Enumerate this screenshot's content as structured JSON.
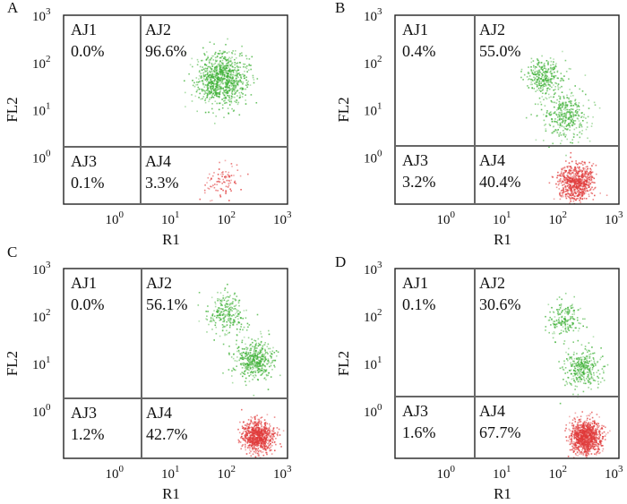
{
  "figure": {
    "description_free": true
  },
  "chart_data": [
    {
      "type": "scatter",
      "panel": "A",
      "xlabel": "R1",
      "ylabel": "FL2",
      "x_ticks": [
        "10",
        "10",
        "10",
        "10"
      ],
      "x_tick_exp": [
        "0",
        "1",
        "2",
        "3"
      ],
      "y_ticks": [
        "10",
        "10",
        "10",
        "10"
      ],
      "y_tick_exp": [
        "0",
        "1",
        "2",
        "3"
      ],
      "x_scale": "log",
      "y_scale": "log",
      "xlim": [
        0.1,
        1000
      ],
      "ylim": [
        0.1,
        1000
      ],
      "quadrants": [
        {
          "name": "AJ1",
          "percent": "0.0%"
        },
        {
          "name": "AJ2",
          "percent": "96.6%"
        },
        {
          "name": "AJ3",
          "percent": "0.1%"
        },
        {
          "name": "AJ4",
          "percent": "3.3%"
        }
      ],
      "clusters": [
        {
          "color": "#3cb034",
          "x": 65,
          "y": 45,
          "spread": 0.22,
          "density": 900
        },
        {
          "color": "#e03a3a",
          "x": 70,
          "y": 0.3,
          "spread": 0.18,
          "density": 90
        }
      ]
    },
    {
      "type": "scatter",
      "panel": "B",
      "xlabel": "R1",
      "ylabel": "FL2",
      "x_ticks": [
        "10",
        "10",
        "10",
        "10"
      ],
      "x_tick_exp": [
        "0",
        "1",
        "2",
        "3"
      ],
      "y_ticks": [
        "10",
        "10",
        "10",
        "10"
      ],
      "y_tick_exp": [
        "0",
        "1",
        "2",
        "3"
      ],
      "x_scale": "log",
      "y_scale": "log",
      "xlim": [
        0.1,
        1000
      ],
      "ylim": [
        0.1,
        1000
      ],
      "quadrants": [
        {
          "name": "AJ1",
          "percent": "0.4%"
        },
        {
          "name": "AJ2",
          "percent": "55.0%"
        },
        {
          "name": "AJ3",
          "percent": "3.2%"
        },
        {
          "name": "AJ4",
          "percent": "40.4%"
        }
      ],
      "clusters": [
        {
          "color": "#3cb034",
          "x": 45,
          "y": 50,
          "spread": 0.16,
          "density": 300
        },
        {
          "color": "#3cb034",
          "x": 110,
          "y": 8,
          "spread": 0.2,
          "density": 350
        },
        {
          "color": "#e03a3a",
          "x": 170,
          "y": 0.3,
          "spread": 0.16,
          "density": 700
        }
      ]
    },
    {
      "type": "scatter",
      "panel": "C",
      "xlabel": "R1",
      "ylabel": "FL2",
      "x_ticks": [
        "10",
        "10",
        "10",
        "10"
      ],
      "x_tick_exp": [
        "0",
        "1",
        "2",
        "3"
      ],
      "y_ticks": [
        "10",
        "10",
        "10",
        "10"
      ],
      "y_tick_exp": [
        "0",
        "1",
        "2",
        "3"
      ],
      "x_scale": "log",
      "y_scale": "log",
      "xlim": [
        0.1,
        1000
      ],
      "ylim": [
        0.1,
        1000
      ],
      "quadrants": [
        {
          "name": "AJ1",
          "percent": "0.0%"
        },
        {
          "name": "AJ2",
          "percent": "56.1%"
        },
        {
          "name": "AJ3",
          "percent": "1.2%"
        },
        {
          "name": "AJ4",
          "percent": "42.7%"
        }
      ],
      "clusters": [
        {
          "color": "#3cb034",
          "x": 80,
          "y": 110,
          "spread": 0.18,
          "density": 250
        },
        {
          "color": "#3cb034",
          "x": 250,
          "y": 12,
          "spread": 0.17,
          "density": 450
        },
        {
          "color": "#e03a3a",
          "x": 290,
          "y": 0.3,
          "spread": 0.14,
          "density": 800
        }
      ]
    },
    {
      "type": "scatter",
      "panel": "D",
      "xlabel": "R1",
      "ylabel": "FL2",
      "x_ticks": [
        "10",
        "10",
        "10",
        "10"
      ],
      "x_tick_exp": [
        "0",
        "1",
        "2",
        "3"
      ],
      "y_ticks": [
        "10",
        "10",
        "10",
        "10"
      ],
      "y_tick_exp": [
        "0",
        "1",
        "2",
        "3"
      ],
      "x_scale": "log",
      "y_scale": "log",
      "xlim": [
        0.1,
        1000
      ],
      "ylim": [
        0.1,
        1000
      ],
      "quadrants": [
        {
          "name": "AJ1",
          "percent": "0.1%"
        },
        {
          "name": "AJ2",
          "percent": "30.6%"
        },
        {
          "name": "AJ3",
          "percent": "1.6%"
        },
        {
          "name": "AJ4",
          "percent": "67.7%"
        }
      ],
      "clusters": [
        {
          "color": "#3cb034",
          "x": 100,
          "y": 90,
          "spread": 0.15,
          "density": 180
        },
        {
          "color": "#3cb034",
          "x": 210,
          "y": 8,
          "spread": 0.16,
          "density": 320
        },
        {
          "color": "#e03a3a",
          "x": 250,
          "y": 0.3,
          "spread": 0.14,
          "density": 1000
        }
      ]
    }
  ]
}
